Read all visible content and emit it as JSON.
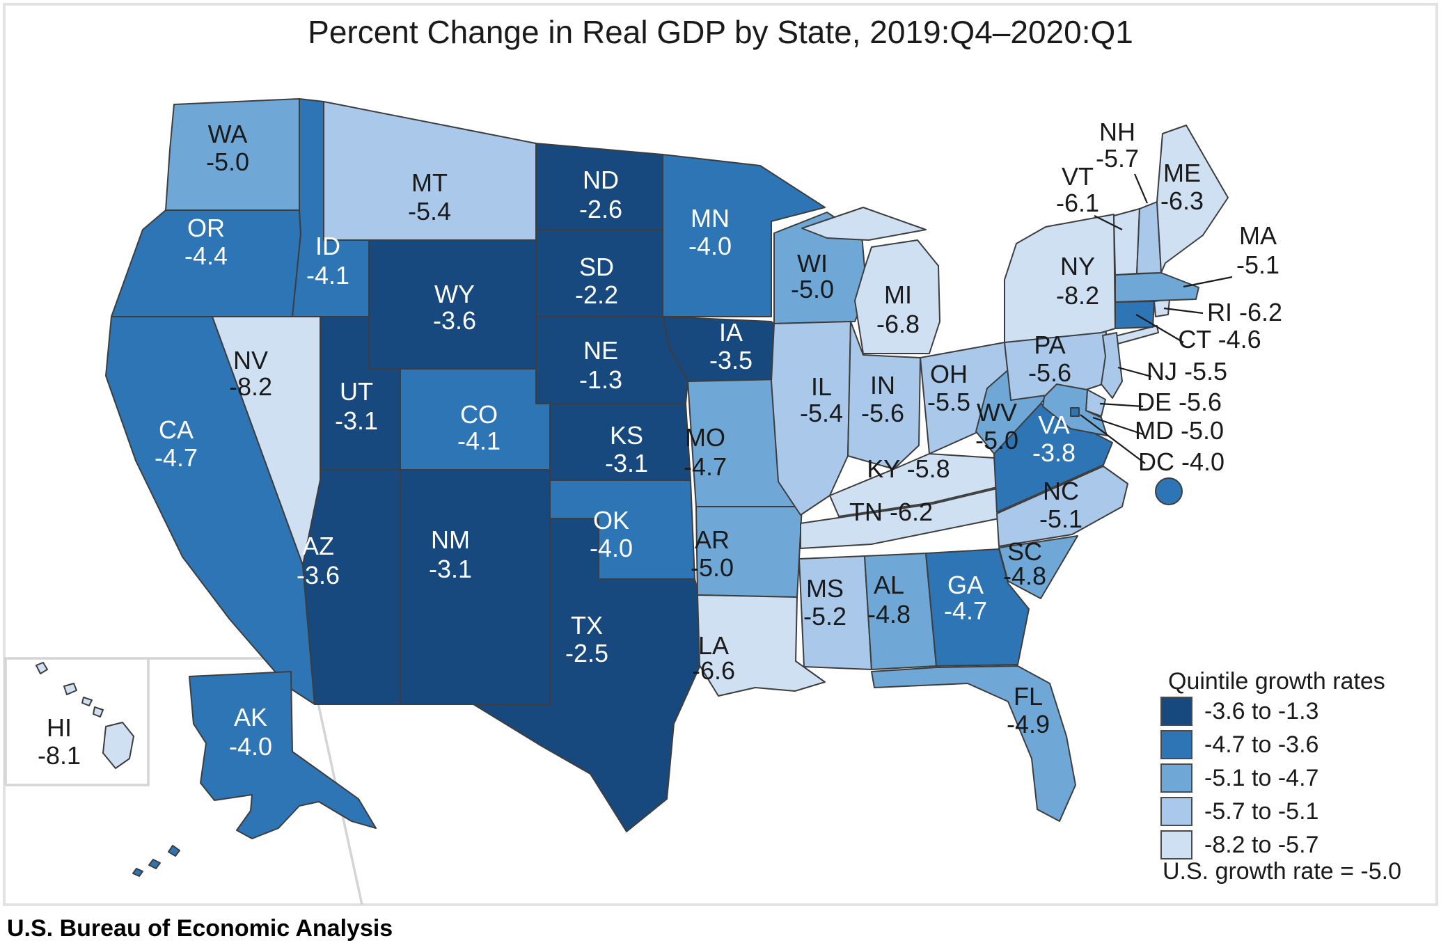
{
  "title": "Percent Change in Real GDP by State, 2019:Q4–2020:Q1",
  "source": "U.S. Bureau of Economic Analysis",
  "legend": {
    "title": "Quintile growth rates",
    "items": [
      {
        "label": "-3.6 to -1.3",
        "color": "#17497E"
      },
      {
        "label": "-4.7 to -3.6",
        "color": "#2E75B6"
      },
      {
        "label": "-5.1 to -4.7",
        "color": "#6FA8D6"
      },
      {
        "label": "-5.7 to -5.1",
        "color": "#A9C8EA"
      },
      {
        "label": "-8.2 to -5.7",
        "color": "#CFE0F3"
      }
    ],
    "note": "U.S. growth rate = -5.0"
  },
  "chart_data": {
    "type": "choropleth_map",
    "region": "United States",
    "metric": "Percent change in real GDP by state, 2019:Q4 to 2020:Q1",
    "unit": "percent",
    "us_growth_rate": -5.0,
    "quintile_ranges": [
      [
        -3.6,
        -1.3
      ],
      [
        -4.7,
        -3.6
      ],
      [
        -5.1,
        -4.7
      ],
      [
        -5.7,
        -5.1
      ],
      [
        -8.2,
        -5.7
      ]
    ],
    "states": [
      {
        "code": "WA",
        "value": -5.0,
        "quintile": 3,
        "label_placement": "direct"
      },
      {
        "code": "OR",
        "value": -4.4,
        "quintile": 2,
        "label_placement": "direct"
      },
      {
        "code": "CA",
        "value": -4.7,
        "quintile": 2,
        "label_placement": "direct"
      },
      {
        "code": "NV",
        "value": -8.2,
        "quintile": 5,
        "label_placement": "direct"
      },
      {
        "code": "ID",
        "value": -4.1,
        "quintile": 2,
        "label_placement": "direct"
      },
      {
        "code": "MT",
        "value": -5.4,
        "quintile": 4,
        "label_placement": "direct"
      },
      {
        "code": "WY",
        "value": -3.6,
        "quintile": 1,
        "label_placement": "direct"
      },
      {
        "code": "UT",
        "value": -3.1,
        "quintile": 1,
        "label_placement": "direct"
      },
      {
        "code": "CO",
        "value": -4.1,
        "quintile": 2,
        "label_placement": "direct"
      },
      {
        "code": "AZ",
        "value": -3.6,
        "quintile": 1,
        "label_placement": "direct"
      },
      {
        "code": "NM",
        "value": -3.1,
        "quintile": 1,
        "label_placement": "direct"
      },
      {
        "code": "ND",
        "value": -2.6,
        "quintile": 1,
        "label_placement": "direct"
      },
      {
        "code": "SD",
        "value": -2.2,
        "quintile": 1,
        "label_placement": "direct"
      },
      {
        "code": "NE",
        "value": -1.3,
        "quintile": 1,
        "label_placement": "direct"
      },
      {
        "code": "KS",
        "value": -3.1,
        "quintile": 1,
        "label_placement": "direct"
      },
      {
        "code": "OK",
        "value": -4.0,
        "quintile": 2,
        "label_placement": "direct"
      },
      {
        "code": "TX",
        "value": -2.5,
        "quintile": 1,
        "label_placement": "direct"
      },
      {
        "code": "MN",
        "value": -4.0,
        "quintile": 2,
        "label_placement": "direct"
      },
      {
        "code": "IA",
        "value": -3.5,
        "quintile": 1,
        "label_placement": "direct"
      },
      {
        "code": "MO",
        "value": -4.7,
        "quintile": 3,
        "label_placement": "direct"
      },
      {
        "code": "AR",
        "value": -5.0,
        "quintile": 3,
        "label_placement": "direct"
      },
      {
        "code": "LA",
        "value": -6.6,
        "quintile": 5,
        "label_placement": "direct"
      },
      {
        "code": "WI",
        "value": -5.0,
        "quintile": 3,
        "label_placement": "direct"
      },
      {
        "code": "IL",
        "value": -5.4,
        "quintile": 4,
        "label_placement": "direct"
      },
      {
        "code": "IN",
        "value": -5.6,
        "quintile": 4,
        "label_placement": "direct"
      },
      {
        "code": "MI",
        "value": -6.8,
        "quintile": 5,
        "label_placement": "direct"
      },
      {
        "code": "OH",
        "value": -5.5,
        "quintile": 4,
        "label_placement": "direct"
      },
      {
        "code": "KY",
        "value": -5.8,
        "quintile": 5,
        "label_placement": "inline"
      },
      {
        "code": "TN",
        "value": -6.2,
        "quintile": 5,
        "label_placement": "inline"
      },
      {
        "code": "MS",
        "value": -5.2,
        "quintile": 4,
        "label_placement": "direct"
      },
      {
        "code": "AL",
        "value": -4.8,
        "quintile": 3,
        "label_placement": "direct"
      },
      {
        "code": "GA",
        "value": -4.7,
        "quintile": 2,
        "label_placement": "direct"
      },
      {
        "code": "FL",
        "value": -4.9,
        "quintile": 3,
        "label_placement": "direct"
      },
      {
        "code": "SC",
        "value": -4.8,
        "quintile": 3,
        "label_placement": "direct"
      },
      {
        "code": "NC",
        "value": -5.1,
        "quintile": 4,
        "label_placement": "direct"
      },
      {
        "code": "VA",
        "value": -3.8,
        "quintile": 2,
        "label_placement": "direct"
      },
      {
        "code": "WV",
        "value": -5.0,
        "quintile": 3,
        "label_placement": "direct"
      },
      {
        "code": "PA",
        "value": -5.6,
        "quintile": 4,
        "label_placement": "direct"
      },
      {
        "code": "NY",
        "value": -8.2,
        "quintile": 5,
        "label_placement": "direct"
      },
      {
        "code": "NJ",
        "value": -5.5,
        "quintile": 4,
        "label_placement": "callout"
      },
      {
        "code": "DE",
        "value": -5.6,
        "quintile": 4,
        "label_placement": "callout"
      },
      {
        "code": "MD",
        "value": -5.0,
        "quintile": 3,
        "label_placement": "callout"
      },
      {
        "code": "DC",
        "value": -4.0,
        "quintile": 2,
        "label_placement": "callout"
      },
      {
        "code": "CT",
        "value": -4.6,
        "quintile": 2,
        "label_placement": "callout"
      },
      {
        "code": "RI",
        "value": -6.2,
        "quintile": 5,
        "label_placement": "callout"
      },
      {
        "code": "MA",
        "value": -5.1,
        "quintile": 3,
        "label_placement": "callout"
      },
      {
        "code": "VT",
        "value": -6.1,
        "quintile": 5,
        "label_placement": "callout"
      },
      {
        "code": "NH",
        "value": -5.7,
        "quintile": 4,
        "label_placement": "callout"
      },
      {
        "code": "ME",
        "value": -6.3,
        "quintile": 5,
        "label_placement": "direct"
      },
      {
        "code": "AK",
        "value": -4.0,
        "quintile": 2,
        "label_placement": "direct"
      },
      {
        "code": "HI",
        "value": -8.1,
        "quintile": 5,
        "label_placement": "direct"
      }
    ]
  }
}
